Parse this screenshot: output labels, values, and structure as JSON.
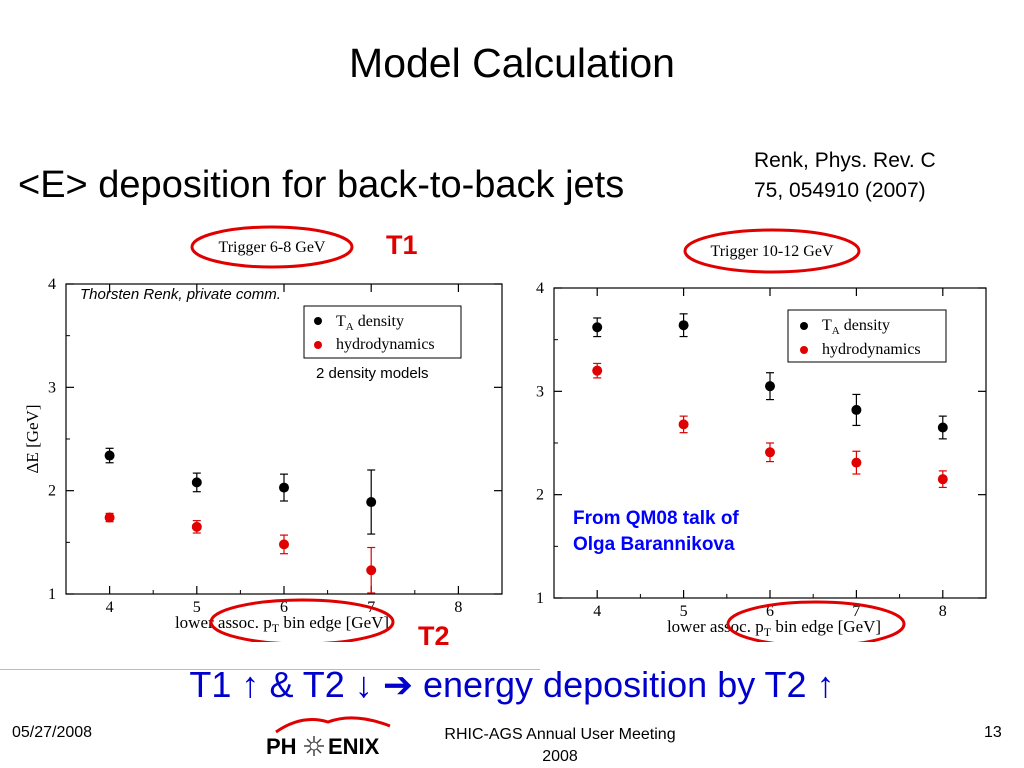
{
  "slide": {
    "title": "Model Calculation",
    "subtitle": "<E> deposition for back-to-back jets",
    "reference": [
      "Renk, Phys. Rev. C",
      "75, 054910 (2007)"
    ],
    "t1_label": "T1",
    "t2_label": "T2",
    "private_comm": "Thorsten Renk, private comm.",
    "density_models_note": "2 density models",
    "source_note": [
      "From QM08 talk of",
      "Olga Barannikova"
    ],
    "conclusion": "T1 ↑ & T2 ↓ ➔ energy deposition by T2 ↑"
  },
  "footer": {
    "date": "05/27/2008",
    "logo_left": "PH",
    "logo_right": "ENIX",
    "meeting": [
      "RHIC-AGS Annual User Meeting",
      "2008"
    ],
    "page": "13"
  },
  "colors": {
    "accent_red": "#e00000",
    "accent_blue": "#0000cc",
    "series_black": "#000000",
    "series_red": "#e00000"
  },
  "chart_data": [
    {
      "type": "scatter",
      "title": "Trigger 6-8 GeV",
      "xlabel": "lower assoc. p_T bin edge [GeV]",
      "ylabel": "ΔE [GeV]",
      "xlim": [
        3.5,
        8.5
      ],
      "ylim": [
        1,
        4
      ],
      "xticks": [
        4,
        5,
        6,
        7,
        8
      ],
      "yticks": [
        1,
        2,
        3,
        4
      ],
      "legend": "top-right",
      "series": [
        {
          "name": "T_A density",
          "color": "#000000",
          "x": [
            4,
            5,
            6,
            7
          ],
          "y": [
            2.34,
            2.08,
            2.03,
            1.89
          ],
          "err": [
            0.07,
            0.09,
            0.13,
            0.31
          ]
        },
        {
          "name": "hydrodynamics",
          "color": "#e00000",
          "x": [
            4,
            5,
            6,
            7
          ],
          "y": [
            1.74,
            1.65,
            1.48,
            1.23
          ],
          "err": [
            0.04,
            0.06,
            0.09,
            0.22
          ]
        }
      ]
    },
    {
      "type": "scatter",
      "title": "Trigger 10-12 GeV",
      "xlabel": "lower assoc. p_T bin edge [GeV]",
      "ylabel": "",
      "xlim": [
        3.5,
        8.5
      ],
      "ylim": [
        1,
        4
      ],
      "xticks": [
        4,
        5,
        6,
        7,
        8
      ],
      "yticks": [
        1,
        2,
        3,
        4
      ],
      "legend": "top-right",
      "series": [
        {
          "name": "T_A density",
          "color": "#000000",
          "x": [
            4,
            5,
            6,
            7,
            8
          ],
          "y": [
            3.62,
            3.64,
            3.05,
            2.82,
            2.65
          ],
          "err": [
            0.09,
            0.11,
            0.13,
            0.15,
            0.11
          ]
        },
        {
          "name": "hydrodynamics",
          "color": "#e00000",
          "x": [
            4,
            5,
            6,
            7,
            8
          ],
          "y": [
            3.2,
            2.68,
            2.41,
            2.31,
            2.15
          ],
          "err": [
            0.07,
            0.08,
            0.09,
            0.11,
            0.08
          ]
        }
      ]
    }
  ]
}
